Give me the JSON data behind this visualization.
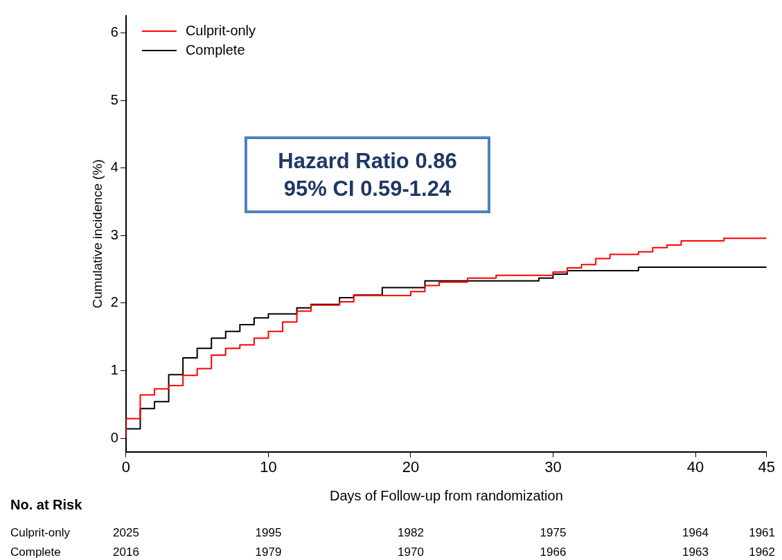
{
  "chart_data": {
    "type": "step",
    "xlabel": "Days of Follow-up from randomization",
    "ylabel": "Cumulative incidence (%)",
    "xlim": [
      0,
      45
    ],
    "xticks": [
      0,
      10,
      20,
      30,
      40,
      45
    ],
    "ylim": [
      -0.2,
      6.25
    ],
    "yticks": [
      0,
      1,
      2,
      3,
      4,
      5,
      6
    ],
    "grid": false,
    "legend": "top left",
    "marker": "none",
    "line_style": "solid",
    "series": [
      {
        "name": "Culprit-only",
        "color": "#ff0000",
        "x": [
          0,
          1,
          2,
          3,
          4,
          5,
          6,
          7,
          8,
          9,
          10,
          11,
          12,
          13,
          15,
          16,
          20,
          21,
          22,
          24,
          26,
          30,
          31,
          32,
          33,
          34,
          36,
          37,
          38,
          39,
          42,
          44,
          45
        ],
        "values": [
          0,
          0.29,
          0.64,
          0.73,
          0.78,
          0.93,
          1.03,
          1.23,
          1.33,
          1.38,
          1.48,
          1.58,
          1.72,
          1.88,
          1.97,
          2.02,
          2.11,
          2.17,
          2.26,
          2.31,
          2.37,
          2.41,
          2.46,
          2.52,
          2.57,
          2.66,
          2.72,
          2.76,
          2.82,
          2.86,
          2.92,
          2.96,
          2.96
        ]
      },
      {
        "name": "Complete",
        "color": "#000000",
        "x": [
          0,
          1,
          2,
          3,
          4,
          5,
          6,
          7,
          8,
          9,
          10,
          12,
          13,
          15,
          16,
          18,
          21,
          29,
          30,
          31,
          36,
          43,
          45
        ],
        "values": [
          0,
          0.14,
          0.44,
          0.54,
          0.94,
          1.19,
          1.33,
          1.48,
          1.58,
          1.68,
          1.78,
          1.84,
          1.93,
          1.98,
          2.08,
          2.12,
          2.23,
          2.33,
          2.37,
          2.43,
          2.48,
          2.53,
          2.53
        ]
      }
    ],
    "annotations": [
      "Hazard Ratio 0.86\n95% CI 0.59-1.24",
      "No. at Risk",
      "Culprit-only",
      "2025",
      "1995",
      "1982",
      "1975",
      "1964",
      "1961",
      "Complete",
      "2016",
      "1979",
      "1970",
      "1966",
      "1963",
      "1962"
    ]
  }
}
